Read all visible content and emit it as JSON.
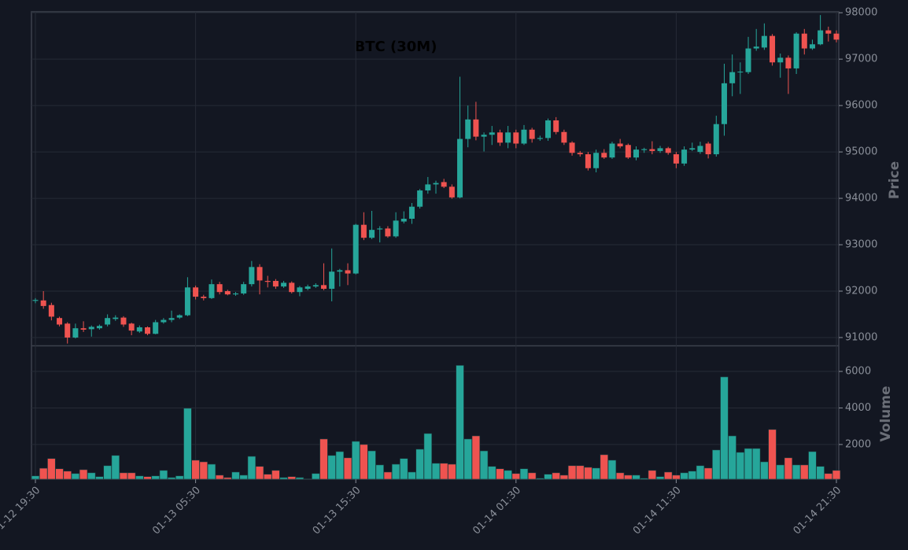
{
  "chart_data": {
    "type": "candlestick",
    "title": "BTC (30M)",
    "ylabel": "Price",
    "volume_ylabel": "Volume",
    "categories": [
      "01-12 19:30",
      null,
      null,
      null,
      null,
      null,
      null,
      null,
      null,
      null,
      null,
      null,
      null,
      null,
      null,
      null,
      null,
      null,
      null,
      null,
      "01-13 05:30",
      null,
      null,
      null,
      null,
      null,
      null,
      null,
      null,
      null,
      null,
      null,
      null,
      null,
      null,
      null,
      null,
      null,
      null,
      null,
      "01-13 15:30",
      null,
      null,
      null,
      null,
      null,
      null,
      null,
      null,
      null,
      null,
      null,
      null,
      null,
      null,
      null,
      null,
      null,
      null,
      null,
      "01-14 01:30",
      null,
      null,
      null,
      null,
      null,
      null,
      null,
      null,
      null,
      null,
      null,
      null,
      null,
      null,
      null,
      null,
      null,
      null,
      null,
      "01-14 11:30",
      null,
      null,
      null,
      null,
      null,
      null,
      null,
      null,
      null,
      null,
      null,
      null,
      null,
      null,
      null,
      null,
      null,
      null,
      null,
      "01-14 21:30"
    ],
    "open": [
      91790,
      91800,
      91700,
      91420,
      91300,
      91000,
      91200,
      91180,
      91200,
      91280,
      91400,
      91430,
      91300,
      91130,
      91220,
      91080,
      91330,
      91380,
      91430,
      91480,
      92080,
      91880,
      91850,
      92150,
      92000,
      91930,
      91950,
      92150,
      92520,
      92220,
      92220,
      92100,
      92180,
      91980,
      92050,
      92100,
      92130,
      92050,
      92420,
      92450,
      92380,
      93430,
      93150,
      93330,
      93350,
      93180,
      93500,
      93560,
      93820,
      94170,
      94300,
      94350,
      94250,
      94020,
      95280,
      95700,
      95330,
      95370,
      95420,
      95200,
      95420,
      95180,
      95480,
      95280,
      95300,
      95680,
      95430,
      95200,
      94980,
      94950,
      94650,
      94980,
      94880,
      95180,
      95150,
      94880,
      95040,
      95060,
      95020,
      95080,
      94950,
      94750,
      95050,
      95000,
      95180,
      94950,
      95600,
      96480,
      96720,
      96720,
      97230,
      97250,
      97500,
      96930,
      97030,
      96800,
      97550,
      97230,
      97320,
      97620,
      97550
    ],
    "high": [
      91850,
      92000,
      91750,
      91450,
      91330,
      91300,
      91350,
      91260,
      91280,
      91500,
      91480,
      91460,
      91320,
      91260,
      91240,
      91380,
      91420,
      91580,
      91500,
      92300,
      92120,
      91920,
      92250,
      92200,
      92030,
      91980,
      92200,
      92650,
      92580,
      92330,
      92260,
      92220,
      92210,
      92110,
      92140,
      92170,
      92600,
      92920,
      92480,
      92600,
      93450,
      93700,
      93730,
      93400,
      93400,
      93700,
      93720,
      93900,
      94200,
      94460,
      94380,
      94420,
      94300,
      96620,
      96000,
      96080,
      95420,
      95560,
      95480,
      95560,
      95480,
      95580,
      95520,
      95350,
      95720,
      95750,
      95480,
      95230,
      95020,
      95000,
      95050,
      95060,
      95220,
      95280,
      95180,
      95120,
      95090,
      95230,
      95130,
      95110,
      95000,
      95120,
      95200,
      95220,
      95220,
      95780,
      96900,
      97100,
      96930,
      97480,
      97650,
      97770,
      97540,
      97120,
      97080,
      97580,
      97650,
      97420,
      97950,
      97700,
      97620
    ],
    "low": [
      91740,
      91620,
      91370,
      91240,
      90870,
      90980,
      91120,
      91020,
      91170,
      91240,
      91360,
      91230,
      91050,
      91100,
      91050,
      91070,
      91300,
      91330,
      91400,
      91460,
      91820,
      91800,
      91830,
      91930,
      91910,
      91900,
      91920,
      92100,
      91930,
      92080,
      92050,
      92070,
      91950,
      91890,
      92020,
      92070,
      92020,
      91780,
      92100,
      92130,
      92360,
      93100,
      93120,
      93050,
      93150,
      93150,
      93460,
      93450,
      93780,
      94100,
      94100,
      94220,
      93990,
      94000,
      95100,
      95250,
      95010,
      95150,
      95130,
      95080,
      95080,
      95150,
      95200,
      95240,
      95240,
      95380,
      95150,
      94920,
      94900,
      94600,
      94560,
      94850,
      94850,
      95080,
      94850,
      94820,
      94980,
      94950,
      94980,
      94940,
      94650,
      94700,
      95020,
      94960,
      94860,
      94900,
      95350,
      96200,
      96250,
      96680,
      97180,
      97200,
      96860,
      96600,
      96250,
      96680,
      97100,
      97200,
      97300,
      97380,
      97360
    ],
    "close": [
      91810,
      91680,
      91450,
      91280,
      91000,
      91200,
      91170,
      91230,
      91250,
      91420,
      91430,
      91280,
      91150,
      91220,
      91080,
      91330,
      91380,
      91420,
      91480,
      92080,
      91880,
      91850,
      92150,
      91980,
      91930,
      91950,
      92150,
      92520,
      92230,
      92200,
      92100,
      92180,
      91980,
      92080,
      92100,
      92130,
      92050,
      92420,
      92450,
      92380,
      93430,
      93150,
      93320,
      93350,
      93180,
      93520,
      93560,
      93820,
      94170,
      94300,
      94330,
      94250,
      94020,
      95280,
      95700,
      95330,
      95370,
      95420,
      95200,
      95420,
      95180,
      95480,
      95280,
      95300,
      95680,
      95430,
      95200,
      94980,
      94950,
      94650,
      94980,
      94880,
      95180,
      95120,
      94880,
      95050,
      95060,
      95020,
      95080,
      94980,
      94750,
      95050,
      95080,
      95130,
      94950,
      95600,
      96480,
      96720,
      96730,
      97230,
      97270,
      97500,
      96930,
      97030,
      96800,
      97550,
      97230,
      97320,
      97620,
      97550,
      97420
    ],
    "volume": [
      280,
      700,
      1230,
      670,
      540,
      410,
      620,
      450,
      240,
      840,
      1400,
      450,
      450,
      280,
      240,
      280,
      580,
      190,
      280,
      3980,
      1140,
      1050,
      920,
      320,
      190,
      490,
      320,
      1350,
      800,
      370,
      580,
      190,
      240,
      190,
      110,
      410,
      2300,
      1400,
      1610,
      1270,
      2170,
      2000,
      1650,
      880,
      490,
      920,
      1230,
      490,
      1740,
      2600,
      970,
      970,
      920,
      6330,
      2300,
      2470,
      1650,
      800,
      670,
      580,
      410,
      670,
      450,
      150,
      370,
      450,
      320,
      840,
      840,
      750,
      710,
      1440,
      1140,
      450,
      320,
      320,
      150,
      580,
      240,
      490,
      320,
      450,
      540,
      840,
      710,
      1700,
      5700,
      2470,
      1570,
      1780,
      1780,
      1050,
      2820,
      880,
      1270,
      880,
      880,
      1610,
      800,
      410,
      580
    ],
    "ylim": [
      90830,
      98020
    ],
    "yticks": [
      91000,
      92000,
      93000,
      94000,
      95000,
      96000,
      97000,
      98000
    ],
    "volume_ylim": [
      100,
      7380
    ],
    "volume_yticks": [
      2000,
      4000,
      6000
    ],
    "up_color": "#26a69a",
    "down_color": "#ef5350",
    "grid": true
  }
}
